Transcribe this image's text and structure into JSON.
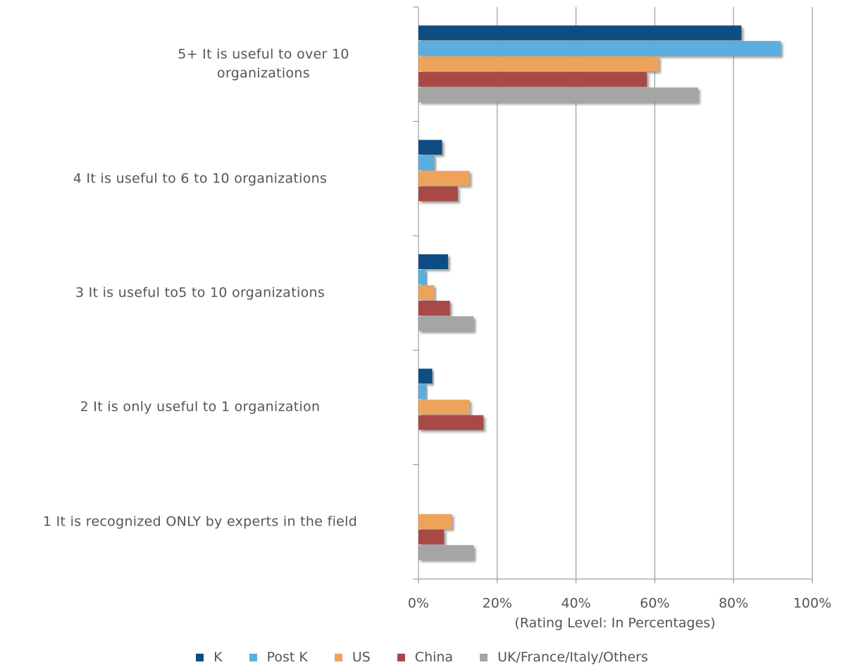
{
  "chart_data": {
    "type": "hbar",
    "categories": [
      "5+  It is useful to over 10 organizations",
      "4  It is useful to 6 to 10 organizations",
      "3   It is useful to5 to 10 organizations",
      "2  It is only useful to 1 organization",
      "1  It is recognized ONLY by experts in the field"
    ],
    "series": [
      {
        "name": "K",
        "color": "#0b4e82",
        "values": [
          82,
          6,
          7.5,
          3.5,
          0
        ]
      },
      {
        "name": "Post K",
        "color": "#5aaee0",
        "values": [
          92,
          4,
          2,
          2,
          0
        ]
      },
      {
        "name": "US",
        "color": "#eea35a",
        "values": [
          61,
          13,
          4,
          13,
          8.5
        ]
      },
      {
        "name": "China",
        "color": "#a84844",
        "values": [
          58,
          10,
          8,
          16.5,
          6.5
        ]
      },
      {
        "name": "UK/France/Italy/Others",
        "color": "#a5a5a5",
        "values": [
          71,
          0,
          14,
          0,
          14
        ]
      }
    ],
    "xlabel": "(Rating Level: In Percentages)",
    "xlim": [
      0,
      100
    ],
    "xticks": [
      {
        "value": 0,
        "label": "0%"
      },
      {
        "value": 20,
        "label": "20%"
      },
      {
        "value": 40,
        "label": "40%"
      },
      {
        "value": 60,
        "label": "60%"
      },
      {
        "value": 80,
        "label": "80%"
      },
      {
        "value": 100,
        "label": "100%"
      }
    ],
    "grid": true,
    "legend": "bottom"
  }
}
